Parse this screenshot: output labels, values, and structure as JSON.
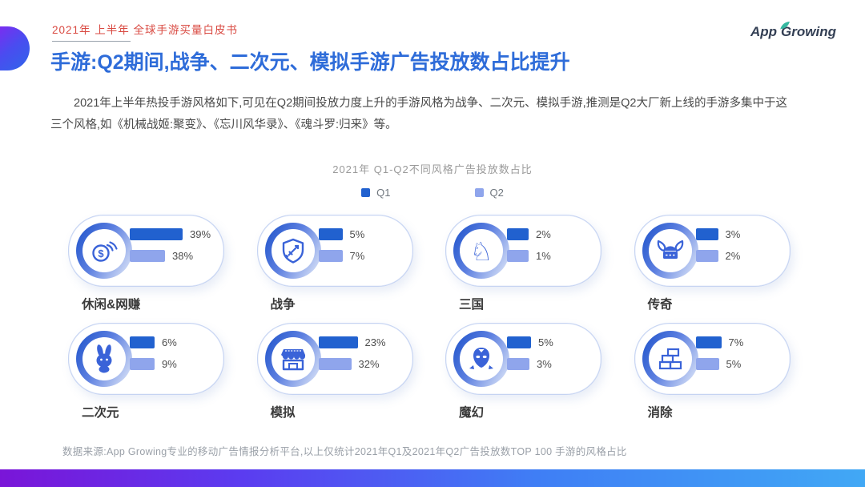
{
  "header": {
    "kicker": "2021年 上半年 全球手游买量白皮书",
    "title": "手游:Q2期间,战争、二次元、模拟手游广告投放数占比提升",
    "logo_text_app": "App",
    "logo_text_growing": "Growing"
  },
  "intro": "2021年上半年热投手游风格如下,可见在Q2期间投放力度上升的手游风格为战争、二次元、模拟手游,推测是Q2大厂新上线的手游多集中于这三个风格,如《机械战姬:聚变》、《忘川风华录》、《魂斗罗:归来》等。",
  "chart_data": {
    "type": "bar",
    "title": "2021年 Q1-Q2不同风格广告投放数占比",
    "categories": [
      "休闲&网赚",
      "战争",
      "三国",
      "传奇",
      "二次元",
      "模拟",
      "魔幻",
      "消除"
    ],
    "series": [
      {
        "name": "Q1",
        "color": "#2161cf",
        "values": [
          39,
          5,
          2,
          3,
          6,
          23,
          5,
          7
        ]
      },
      {
        "name": "Q2",
        "color": "#8fa5ec",
        "values": [
          38,
          7,
          1,
          2,
          9,
          32,
          3,
          5
        ]
      }
    ],
    "unit": "%",
    "legend_position": "top-center",
    "icons": [
      "coins-icon",
      "shield-sword-icon",
      "chess-knight-icon",
      "viking-helmet-icon",
      "rabbit-icon",
      "shop-icon",
      "magic-face-icon",
      "bricks-icon"
    ]
  },
  "footer": {
    "source": "数据来源:App Growing专业的移动广告情报分析平台,以上仅统计2021年Q1及2021年Q2广告投放数TOP 100 手游的风格占比"
  },
  "colors": {
    "accent_blue": "#2e6cd9",
    "kicker_red": "#d94a42",
    "q1_bar": "#2161cf",
    "q2_bar": "#8fa5ec",
    "icon_blue": "#3a63d8",
    "bottom_gradient": [
      "#7a15d8",
      "#5b3cf0",
      "#3f7ef5",
      "#41a8f5"
    ]
  }
}
